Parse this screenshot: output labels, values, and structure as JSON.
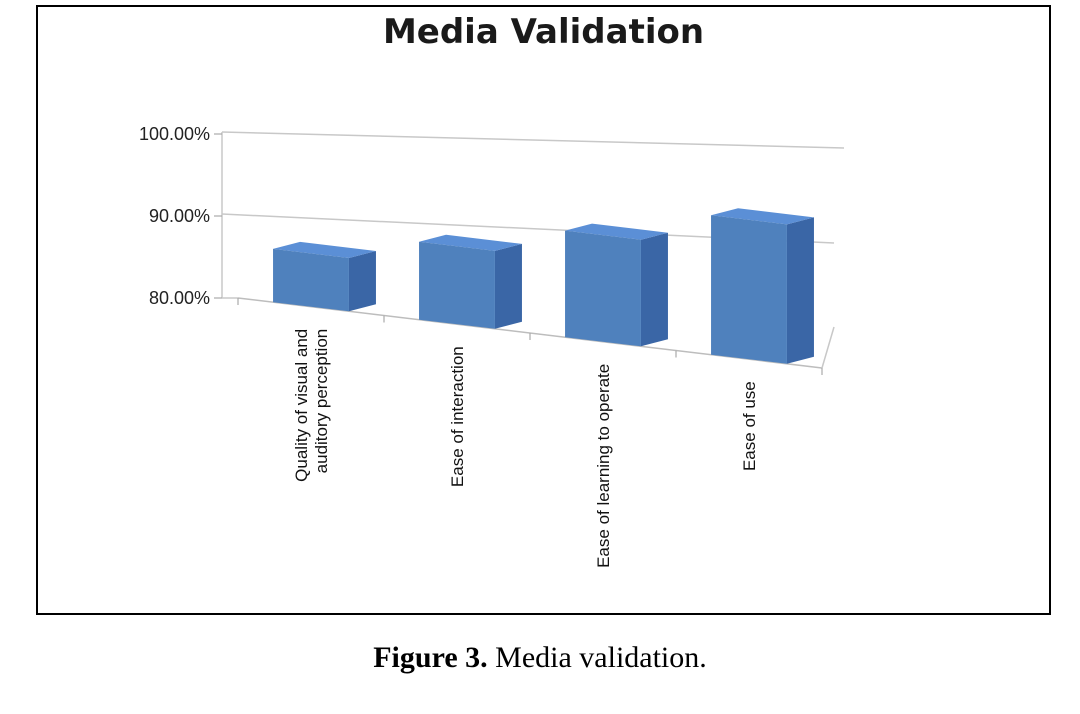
{
  "chart_data": {
    "type": "bar",
    "title": "Media Validation",
    "categories": [
      "Quality of visual and auditory perception",
      "Ease of interaction",
      "Ease of learning to operate",
      "Ease of use"
    ],
    "category_lines": [
      [
        "Quality of visual and",
        "auditory perception"
      ],
      [
        "Ease of interaction"
      ],
      [
        "Ease of learning to operate"
      ],
      [
        "Ease of use"
      ]
    ],
    "values": [
      86.5,
      89.5,
      93.0,
      97.0
    ],
    "ylim": [
      80,
      100
    ],
    "yticks": [
      "80.00%",
      "90.00%",
      "100.00%"
    ],
    "xlabel": "",
    "ylabel": "",
    "grid": true,
    "bar_color": "#4f81bd",
    "bar_top_color": "#5b8fd6",
    "bar_side_color": "#3a66a6"
  },
  "caption": {
    "label": "Figure 3.",
    "text": " Media validation."
  }
}
